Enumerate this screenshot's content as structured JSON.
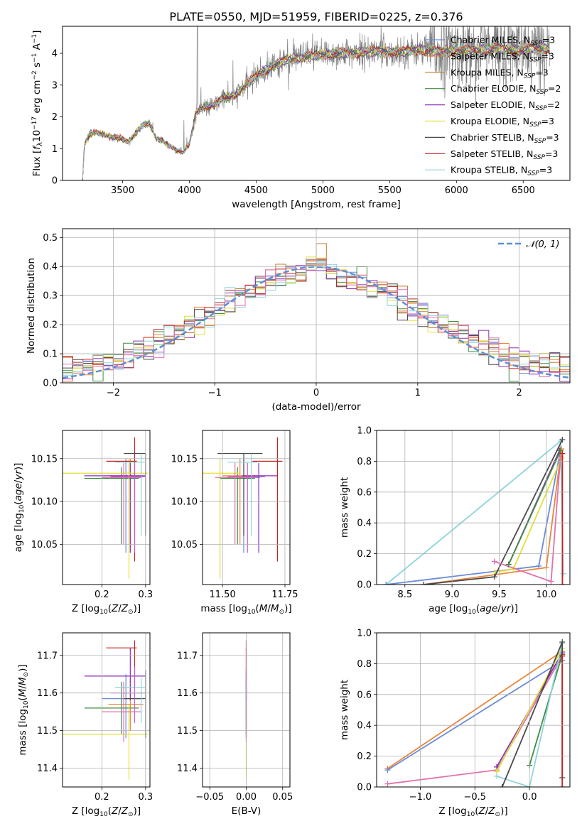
{
  "figure_title": "PLATE=0550, MJD=51959, FIBERID=0225, z=0.376",
  "colors": {
    "chabrier_miles": "#6a8bd8",
    "salpeter_miles": "#e8853a",
    "kroupa_miles": "#c87a28",
    "chabrier_elodie": "#3e8c3e",
    "salpeter_elodie": "#8b2fb5",
    "kroupa_elodie": "#e0e038",
    "chabrier_stelib": "#4a4a4a",
    "salpeter_stelib": "#c0241e",
    "kroupa_stelib": "#8fd4dc",
    "pink": "#e070b0",
    "violet": "#c060c8",
    "gaussian": "#5b8fd6",
    "spectrum_gray": "#808080",
    "grid": "#b0b0b0"
  },
  "chart_data": [
    {
      "id": "spectrum",
      "type": "line",
      "title": "PLATE=0550, MJD=51959, FIBERID=0225, z=0.376",
      "xlabel": "wavelength [Angstrom, rest frame]",
      "ylabel": "Flux [f_λ 10^-17 erg cm^-2 s^-1 A^-1]",
      "xlim": [
        3050,
        6850
      ],
      "ylim": [
        0,
        4.85
      ],
      "xticks": [
        "3500",
        "4000",
        "4500",
        "5000",
        "5500",
        "6000",
        "6500"
      ],
      "yticks": [
        "0",
        "1",
        "2",
        "3",
        "4"
      ],
      "grid": false,
      "legend_position": "top-right",
      "legend": [
        "Chabrier MILES, N_SSP=3",
        "Salpeter MILES, N_SSP=3",
        "Kroupa MILES, N_SSP=3",
        "Chabrier ELODIE, N_SSP=2",
        "Salpeter ELODIE, N_SSP=2",
        "Kroupa ELODIE, N_SSP=3",
        "Chabrier STELIB, N_SSP=3",
        "Salpeter STELIB, N_SSP=3",
        "Kroupa STELIB, N_SSP=3"
      ],
      "continuum": {
        "x": [
          3200,
          3215,
          3260,
          3300,
          3350,
          3400,
          3450,
          3500,
          3550,
          3600,
          3650,
          3700,
          3750,
          3800,
          3850,
          3900,
          3950,
          4000,
          4050,
          4100,
          4150,
          4200,
          4250,
          4300,
          4350,
          4400,
          4450,
          4500,
          4600,
          4700,
          4800,
          4900,
          5000,
          5100,
          5200,
          5300,
          5400,
          5500,
          5600,
          5700,
          5800,
          5900,
          6000,
          6100,
          6200,
          6300,
          6400,
          6500,
          6600,
          6700
        ],
        "y": [
          0.0,
          1.15,
          1.45,
          1.5,
          1.45,
          1.4,
          1.35,
          1.3,
          1.2,
          1.5,
          1.75,
          1.8,
          1.3,
          1.25,
          1.1,
          0.95,
          0.9,
          1.15,
          2.15,
          2.3,
          2.3,
          2.4,
          2.6,
          2.6,
          2.7,
          2.9,
          3.1,
          3.3,
          3.55,
          3.75,
          3.85,
          3.9,
          3.95,
          4.0,
          4.0,
          4.05,
          4.05,
          4.05,
          4.05,
          4.1,
          4.1,
          4.05,
          4.1,
          4.1,
          4.1,
          4.15,
          4.1,
          4.1,
          4.15,
          4.15
        ]
      }
    },
    {
      "id": "residuals",
      "type": "bar",
      "xlabel": "(data-model)/error",
      "ylabel": "Normed distribution",
      "xlim": [
        -2.5,
        2.5
      ],
      "ylim": [
        0,
        0.53
      ],
      "xticks": [
        "−2",
        "−1",
        "0",
        "1",
        "2"
      ],
      "yticks": [
        "0.0",
        "0.1",
        "0.2",
        "0.3",
        "0.4",
        "0.5"
      ],
      "grid": true,
      "legend_position": "top-right",
      "gaussian_label": "𝒩(0, 1)",
      "bin_width": 0.1
    },
    {
      "id": "age_vs_Z",
      "type": "scatter",
      "xlabel": "Z [log10(Z/Z⊙)]",
      "ylabel": "age  [log10(age/yr)]",
      "xlim": [
        0.11,
        0.31
      ],
      "ylim": [
        10.003,
        10.183
      ],
      "xticks": [
        "0.2",
        "0.3"
      ],
      "yticks": [
        "10.05",
        "10.10",
        "10.15"
      ],
      "grid": true
    },
    {
      "id": "age_vs_mass",
      "type": "scatter",
      "xlabel": "mass [log10(M/M⊙)]",
      "ylabel": "",
      "xlim": [
        11.42,
        11.77
      ],
      "ylim": [
        10.003,
        10.183
      ],
      "xticks": [
        "11.50",
        "11.75"
      ],
      "yticks": [
        "10.05",
        "10.10",
        "10.15"
      ],
      "grid": true
    },
    {
      "id": "massweight_vs_age",
      "type": "line",
      "xlabel": "age  [log10(age/yr)]",
      "ylabel": "mass weight",
      "xlim": [
        8.2,
        10.25
      ],
      "ylim": [
        0,
        1
      ],
      "xticks": [
        "8.5",
        "9.0",
        "9.5",
        "10.0"
      ],
      "yticks": [
        "0.0",
        "0.2",
        "0.4",
        "0.6",
        "0.8",
        "1.0"
      ],
      "grid": true
    },
    {
      "id": "mass_vs_Z",
      "type": "scatter",
      "xlabel": "Z [log10(Z/Z⊙)]",
      "ylabel": "mass [log10(M/M⊙)]",
      "xlim": [
        0.11,
        0.31
      ],
      "ylim": [
        11.35,
        11.76
      ],
      "xticks": [
        "0.2",
        "0.3"
      ],
      "yticks": [
        "11.4",
        "11.5",
        "11.6",
        "11.7"
      ],
      "grid": true
    },
    {
      "id": "mass_vs_EBV",
      "type": "scatter",
      "xlabel": "E(B-V)",
      "ylabel": "",
      "xlim": [
        -0.06,
        0.06
      ],
      "ylim": [
        11.35,
        11.76
      ],
      "xticks": [
        "−0.05",
        "0.00",
        "0.05"
      ],
      "yticks": [
        "11.4",
        "11.5",
        "11.6",
        "11.7"
      ],
      "grid": true
    },
    {
      "id": "massweight_vs_Z",
      "type": "line",
      "xlabel": "Z [log10(Z/Z⊙)]",
      "ylabel": "mass weight",
      "xlim": [
        -1.4,
        0.37
      ],
      "ylim": [
        0,
        1
      ],
      "xticks": [
        "−1.0",
        "−0.5",
        "0.0"
      ],
      "yticks": [
        "0.0",
        "0.2",
        "0.4",
        "0.6",
        "0.8",
        "1.0"
      ],
      "grid": true
    }
  ],
  "errorbars": {
    "models": [
      {
        "color": "chabrier_miles",
        "Z": 0.255,
        "Zlo": 0.2,
        "Zhi": 0.29,
        "age": 10.128,
        "agelo": 10.04,
        "agehi": 10.15,
        "mass": 11.585,
        "masslo": 11.48,
        "masshi": 11.65
      },
      {
        "color": "salpeter_miles",
        "Z": 0.265,
        "Zlo": 0.215,
        "Zhi": 0.295,
        "age": 10.13,
        "agelo": 10.05,
        "agehi": 10.15,
        "mass": 11.57,
        "masslo": 11.5,
        "masshi": 11.64
      },
      {
        "color": "chabrier_elodie",
        "Z": 0.245,
        "Zlo": 0.16,
        "Zhi": 0.285,
        "age": 10.127,
        "agelo": 10.05,
        "agehi": 10.14,
        "mass": 11.56,
        "masslo": 11.49,
        "masshi": 11.63
      },
      {
        "color": "salpeter_elodie",
        "Z": 0.265,
        "Zlo": 0.16,
        "Zhi": 0.3,
        "age": 10.13,
        "agelo": 10.04,
        "agehi": 10.145,
        "mass": 11.645,
        "masslo": 11.58,
        "masshi": 11.72
      },
      {
        "color": "kroupa_elodie",
        "Z": 0.262,
        "Zlo": 0.11,
        "Zhi": 0.305,
        "age": 10.133,
        "agelo": 10.01,
        "agehi": 10.15,
        "mass": 11.49,
        "masslo": 11.37,
        "masshi": 11.57
      },
      {
        "color": "chabrier_stelib",
        "Z": 0.3,
        "Zlo": 0.25,
        "Zhi": 0.3,
        "age": 10.156,
        "agelo": 10.06,
        "agehi": 10.156,
        "mass": 11.585,
        "masslo": 11.48,
        "masshi": 11.66
      },
      {
        "color": "salpeter_stelib",
        "Z": 0.275,
        "Zlo": 0.21,
        "Zhi": 0.28,
        "age": 10.147,
        "agelo": 10.03,
        "agehi": 10.175,
        "mass": 11.72,
        "masslo": 11.62,
        "masshi": 11.74
      },
      {
        "color": "kroupa_stelib",
        "Z": 0.29,
        "Zlo": 0.23,
        "Zhi": 0.3,
        "age": 10.146,
        "agelo": 10.06,
        "agehi": 10.156,
        "mass": 11.615,
        "masslo": 11.52,
        "masshi": 11.64
      },
      {
        "color": "pink",
        "Z": 0.25,
        "Zlo": 0.2,
        "Zhi": 0.29,
        "age": 10.128,
        "agelo": 10.05,
        "agehi": 10.145,
        "mass": 11.55,
        "masslo": 11.47,
        "masshi": 11.63
      },
      {
        "color": "violet",
        "Z": 0.275,
        "Zlo": 0.22,
        "Zhi": 0.3,
        "age": 10.129,
        "agelo": 10.04,
        "agehi": 10.145,
        "mass": 11.6,
        "masslo": 11.52,
        "masshi": 11.67
      }
    ]
  },
  "mass_weight_age": [
    {
      "color": "kroupa_stelib",
      "age": [
        8.3,
        10.15,
        10.18
      ],
      "w": [
        0.0,
        0.93,
        0.07
      ]
    },
    {
      "color": "chabrier_miles",
      "age": [
        8.3,
        9.92,
        10.15
      ],
      "w": [
        0.0,
        0.12,
        0.87
      ]
    },
    {
      "color": "salpeter_miles",
      "age": [
        8.7,
        10.0,
        10.16
      ],
      "w": [
        0.0,
        0.11,
        0.88
      ]
    },
    {
      "color": "salpeter_elodie",
      "age": [
        9.6,
        10.14
      ],
      "w": [
        0.13,
        0.87
      ]
    },
    {
      "color": "kroupa_elodie",
      "age": [
        9.45,
        9.65,
        10.16
      ],
      "w": [
        0.08,
        0.1,
        0.82
      ]
    },
    {
      "color": "chabrier_stelib",
      "age": [
        8.7,
        9.45,
        10.17
      ],
      "w": [
        0.0,
        0.05,
        0.94
      ]
    },
    {
      "color": "pink",
      "age": [
        9.45,
        10.05,
        10.15
      ],
      "w": [
        0.15,
        0.02,
        0.83
      ]
    },
    {
      "color": "chabrier_elodie",
      "age": [
        9.6,
        10.15
      ],
      "w": [
        0.13,
        0.87
      ]
    },
    {
      "color": "salpeter_stelib",
      "age": [
        10.17,
        10.17
      ],
      "w": [
        0.0,
        0.85
      ]
    }
  ],
  "mass_weight_Z": [
    {
      "color": "salpeter_miles",
      "Z": [
        -1.3,
        0.3
      ],
      "w": [
        0.12,
        0.88
      ]
    },
    {
      "color": "chabrier_miles",
      "Z": [
        -1.3,
        0.3
      ],
      "w": [
        0.11,
        0.82
      ]
    },
    {
      "color": "pink",
      "Z": [
        -1.3,
        -0.3,
        0.3
      ],
      "w": [
        0.02,
        0.11,
        0.85
      ]
    },
    {
      "color": "salpeter_elodie",
      "Z": [
        -0.3,
        0.3
      ],
      "w": [
        0.13,
        0.87
      ]
    },
    {
      "color": "kroupa_elodie",
      "Z": [
        -0.3,
        0.3
      ],
      "w": [
        0.1,
        0.9
      ]
    },
    {
      "color": "chabrier_elodie",
      "Z": [
        0.0,
        0.3
      ],
      "w": [
        0.14,
        0.86
      ]
    },
    {
      "color": "kroupa_stelib",
      "Z": [
        -0.3,
        0.0,
        0.3
      ],
      "w": [
        0.07,
        0.0,
        0.93
      ]
    },
    {
      "color": "chabrier_stelib",
      "Z": [
        -0.25,
        0.3,
        0.3
      ],
      "w": [
        0.0,
        0.94,
        0.06
      ]
    },
    {
      "color": "salpeter_stelib",
      "Z": [
        0.3,
        0.3
      ],
      "w": [
        0.0,
        0.85
      ]
    }
  ]
}
